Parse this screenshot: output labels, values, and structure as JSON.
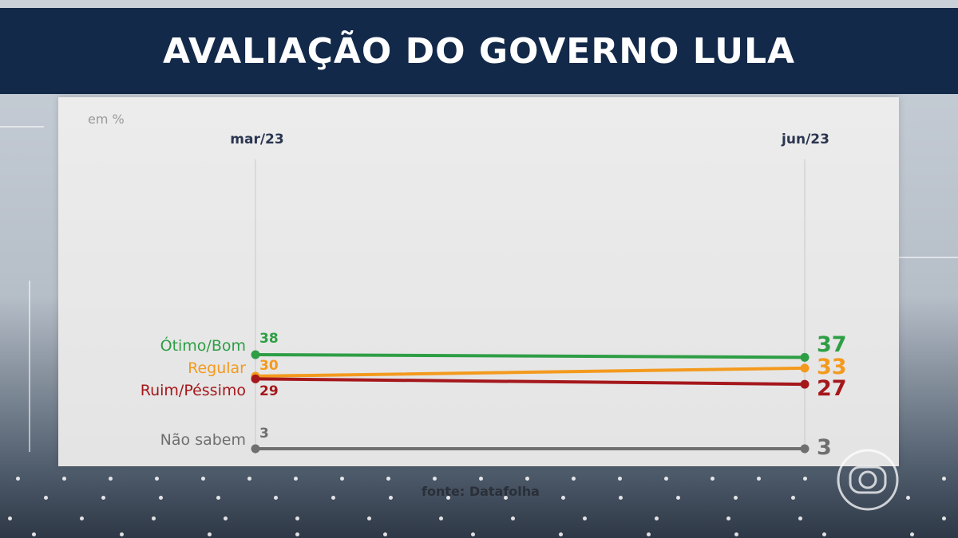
{
  "header": {
    "title": "AVALIAÇÃO DO GOVERNO LULA"
  },
  "chart_data": {
    "type": "line",
    "title": "AVALIAÇÃO DO GOVERNO LULA",
    "unit_label": "em %",
    "x": [
      "mar/23",
      "jun/23"
    ],
    "series": [
      {
        "name": "Ótimo/Bom",
        "values": [
          38,
          37
        ],
        "color": "#2e9e45"
      },
      {
        "name": "Regular",
        "values": [
          30,
          33
        ],
        "color": "#f39a1e"
      },
      {
        "name": "Ruim/Péssimo",
        "values": [
          29,
          27
        ],
        "color": "#a5171b"
      },
      {
        "name": "Não sabem",
        "values": [
          3,
          3
        ],
        "color": "#6f6f6f"
      }
    ],
    "source": "fonte: Datafolha"
  },
  "colors": {
    "title_bar": "#13294a",
    "panel": "#e8e8e8"
  },
  "logo": {
    "icon": "globo-logo-icon"
  }
}
